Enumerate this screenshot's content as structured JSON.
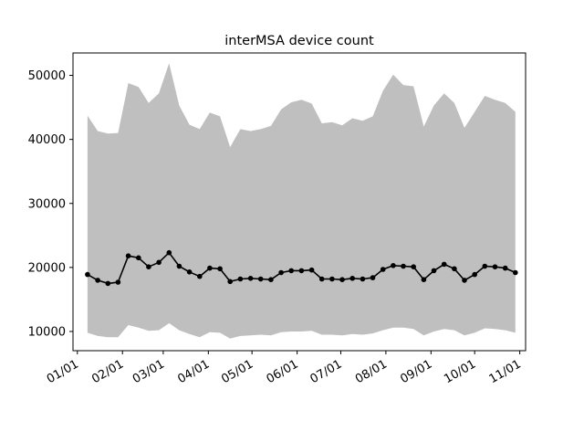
{
  "chart_data": {
    "type": "line",
    "title": "interMSA device count",
    "xlabel": "",
    "ylabel": "",
    "x_tick_labels": [
      "01/01",
      "02/01",
      "03/01",
      "04/01",
      "05/01",
      "06/01",
      "07/01",
      "08/01",
      "09/01",
      "10/01",
      "11/01"
    ],
    "x_tick_dates": [
      "2023-01-01",
      "2023-02-01",
      "2023-03-01",
      "2023-04-01",
      "2023-05-01",
      "2023-06-01",
      "2023-07-01",
      "2023-08-01",
      "2023-09-01",
      "2023-10-01",
      "2023-11-01"
    ],
    "y_ticks": [
      10000,
      20000,
      30000,
      40000,
      50000
    ],
    "xlim": [
      "2022-12-29",
      "2023-11-05"
    ],
    "ylim": [
      7000,
      53500
    ],
    "grid": false,
    "colors": {
      "line": "#000000",
      "band": "#bfbfbf"
    },
    "x": [
      "2023-01-08",
      "2023-01-15",
      "2023-01-22",
      "2023-01-29",
      "2023-02-05",
      "2023-02-12",
      "2023-02-19",
      "2023-02-26",
      "2023-03-05",
      "2023-03-12",
      "2023-03-19",
      "2023-03-26",
      "2023-04-02",
      "2023-04-09",
      "2023-04-16",
      "2023-04-23",
      "2023-04-30",
      "2023-05-07",
      "2023-05-14",
      "2023-05-21",
      "2023-05-28",
      "2023-06-04",
      "2023-06-11",
      "2023-06-18",
      "2023-06-25",
      "2023-07-02",
      "2023-07-09",
      "2023-07-16",
      "2023-07-23",
      "2023-07-30",
      "2023-08-06",
      "2023-08-13",
      "2023-08-20",
      "2023-08-27",
      "2023-09-03",
      "2023-09-10",
      "2023-09-17",
      "2023-09-24",
      "2023-10-01",
      "2023-10-08",
      "2023-10-15",
      "2023-10-22",
      "2023-10-29"
    ],
    "series": [
      {
        "values": [
          18900,
          18000,
          17500,
          17700,
          21800,
          21500,
          20100,
          20800,
          22300,
          20200,
          19300,
          18600,
          19900,
          19800,
          17800,
          18200,
          18300,
          18200,
          18100,
          19200,
          19500,
          19500,
          19600,
          18200,
          18200,
          18100,
          18300,
          18200,
          18400,
          19700,
          20300,
          20200,
          20100,
          18100,
          19500,
          20500,
          19800,
          18000,
          18900,
          20200,
          20100,
          19900,
          19200
        ]
      }
    ],
    "band": {
      "lower": [
        9800,
        9300,
        9100,
        9100,
        11000,
        10600,
        10100,
        10200,
        11300,
        10200,
        9600,
        9100,
        9900,
        9800,
        8900,
        9300,
        9400,
        9500,
        9400,
        9900,
        10000,
        10000,
        10100,
        9500,
        9500,
        9400,
        9600,
        9500,
        9700,
        10200,
        10600,
        10600,
        10400,
        9400,
        10000,
        10400,
        10200,
        9400,
        9800,
        10500,
        10400,
        10200,
        9800
      ],
      "upper": [
        43700,
        41300,
        40900,
        41000,
        48800,
        48200,
        45700,
        47200,
        51900,
        45300,
        42300,
        41600,
        44200,
        43600,
        38800,
        41600,
        41300,
        41600,
        42100,
        44700,
        45800,
        46200,
        45600,
        42500,
        42700,
        42200,
        43300,
        42900,
        43600,
        47600,
        50100,
        48500,
        48300,
        42000,
        45300,
        47200,
        45700,
        41800,
        44300,
        46800,
        46200,
        45700,
        44300
      ]
    }
  }
}
